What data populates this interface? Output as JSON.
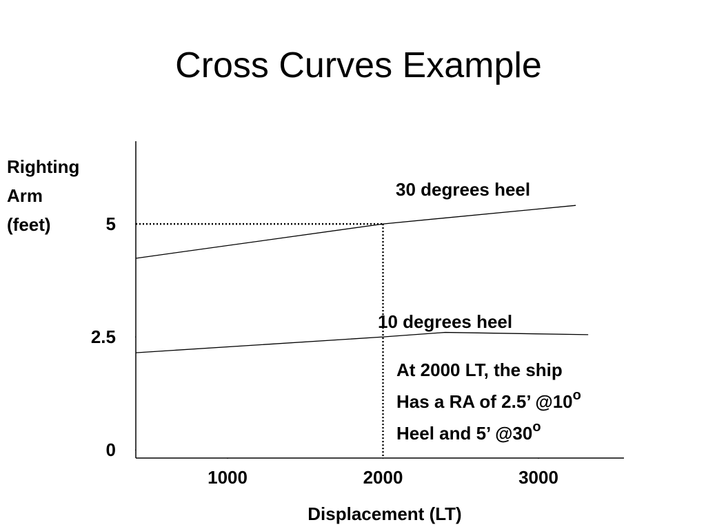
{
  "chart_data": {
    "type": "line",
    "title": "Cross Curves Example",
    "xlabel": "Displacement (LT)",
    "ylabel_lines": [
      "Righting",
      "Arm",
      "(feet)"
    ],
    "xlim": [
      410,
      3550
    ],
    "xticks": [
      1000,
      2000,
      3000
    ],
    "ylim": [
      -0.18,
      6.83
    ],
    "yticks": [
      0,
      2.5,
      5
    ],
    "series": [
      {
        "name": "30 degrees heel",
        "color": "#000000",
        "x": [
          410,
          2000,
          3240
        ],
        "values": [
          4.24,
          5,
          5.41
        ]
      },
      {
        "name": "10 degrees heel",
        "color": "#000000",
        "x": [
          410,
          2000,
          2400,
          3320
        ],
        "values": [
          2.15,
          2.5,
          2.6,
          2.55
        ]
      }
    ],
    "reference_point": {
      "x": 2000,
      "y": 5
    },
    "annotation_lines": [
      {
        "text": "At 2000 LT, the ship"
      },
      {
        "text": "Has a RA of 2.5’ @10",
        "sup": "o"
      },
      {
        "text": "Heel and 5’ @30",
        "sup": "o"
      }
    ]
  }
}
